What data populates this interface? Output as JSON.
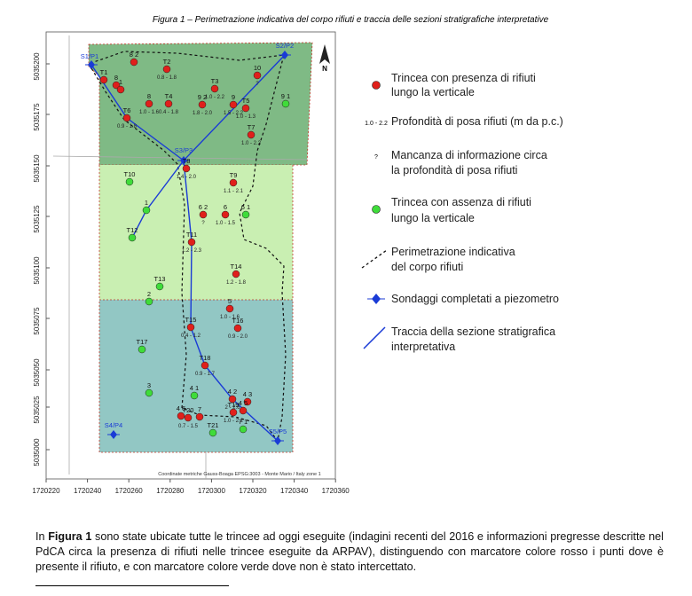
{
  "header": {
    "caption": "Figura 1 – Perimetrazione indicativa del corpo rifiuti e traccia delle sezioni stratigrafiche interpretative"
  },
  "map": {
    "north": "N",
    "note": "Coordinate metriche Gauss-Boaga EPSG:3003 - Monte Mario / Italy zone 1",
    "y_axis": [
      "5035200",
      "5035175",
      "5035150",
      "5035125",
      "5035100",
      "5035075",
      "5035050",
      "5035025",
      "5035000"
    ],
    "x_axis": [
      "1720220",
      "1720240",
      "1720260",
      "1720280",
      "1720300",
      "1720320",
      "1720340",
      "1720360"
    ],
    "wells": [
      "S1/P1",
      "S2/P2",
      "S3/P3",
      "S4/P4",
      "S5/P5"
    ],
    "points": [
      {
        "label": "8 2"
      },
      {
        "label": "T2",
        "depth": "0.8 - 1.8"
      },
      {
        "label": "T1"
      },
      {
        "label": "8"
      },
      {
        "label": "1"
      },
      {
        "label": "T3",
        "depth": "1.0 - 2.2"
      },
      {
        "label": "10",
        "depth": "?"
      },
      {
        "label": "T6",
        "depth": "0.9 - 1.8"
      },
      {
        "label": "8",
        "depth": "1.0 - 1.6"
      },
      {
        "label": "T4",
        "depth": "0.4 - 1.8"
      },
      {
        "label": "9 2",
        "depth": "1.8 - 2.0"
      },
      {
        "label": "9",
        "depth": "1.5 - 2.2"
      },
      {
        "label": "T5",
        "depth": "1.0 - 1.3"
      },
      {
        "label": "T7",
        "depth": "1.0 - 2.2"
      },
      {
        "label": "T8",
        "depth": "1.4 - 2.0"
      },
      {
        "label": "T9",
        "depth": "1.1 - 2.1"
      },
      {
        "label": "6 2",
        "depth": "?"
      },
      {
        "label": "6",
        "depth": "1.0 - 1.5"
      },
      {
        "label": "T11",
        "depth": "1.2 - 2.3"
      },
      {
        "label": "T14",
        "depth": "1.2 - 1.8"
      },
      {
        "label": "5",
        "depth": "1.0 - 1.6"
      },
      {
        "label": "T16",
        "depth": "0.9 - 2.0"
      },
      {
        "label": "T15",
        "depth": "0.4 - 1.2"
      },
      {
        "label": "T18",
        "depth": "0.9 - 1.7"
      },
      {
        "label": "4 2",
        "depth": "2 - 2.6"
      },
      {
        "label": "4 3"
      },
      {
        "label": "4 5"
      },
      {
        "label": "4 6"
      },
      {
        "label": "T20",
        "depth": "0.7 - 1.5"
      },
      {
        "label": "7"
      },
      {
        "label": "T19",
        "depth": "1.0 - 2.2"
      },
      {
        "label": "9 1"
      },
      {
        "label": "6 1"
      },
      {
        "label": "T10"
      },
      {
        "label": "1"
      },
      {
        "label": "T12"
      },
      {
        "label": "T13"
      },
      {
        "label": "2"
      },
      {
        "label": "T17"
      },
      {
        "label": "3"
      },
      {
        "label": "4 1"
      },
      {
        "label": "7 1"
      },
      {
        "label": "T21"
      }
    ]
  },
  "legend": [
    {
      "lines": [
        "Trincea con presenza di rifiuti",
        "lungo la verticale"
      ]
    },
    {
      "sample": "1.0 - 2.2",
      "lines": [
        "Profondità di posa rifiuti (m da p.c.)"
      ]
    },
    {
      "sample": "?",
      "lines": [
        "Mancanza di informazione circa",
        "la profondità di posa rifiuti"
      ]
    },
    {
      "lines": [
        "Trincea con assenza di rifiuti",
        "lungo la verticale"
      ]
    },
    {
      "lines": [
        "Perimetrazione indicativa",
        "del corpo rifiuti"
      ]
    },
    {
      "lines": [
        "Sondaggi completati a piezometro"
      ]
    },
    {
      "lines": [
        "Traccia della sezione stratigrafica",
        "interpretativa"
      ]
    }
  ],
  "body": {
    "parts": [
      "In ",
      "Figura 1",
      " sono state ubicate tutte le trincee ad oggi eseguite (indagini recenti del 2016 e informazioni pregresse descritte nel PdCA circa la presenza di rifiuti nelle trincee eseguite da ARPAV), distinguendo con marcatore colore rosso i punti dove è presente il rifiuto, e con marcatore colore verde dove non è stato intercettato."
    ]
  }
}
